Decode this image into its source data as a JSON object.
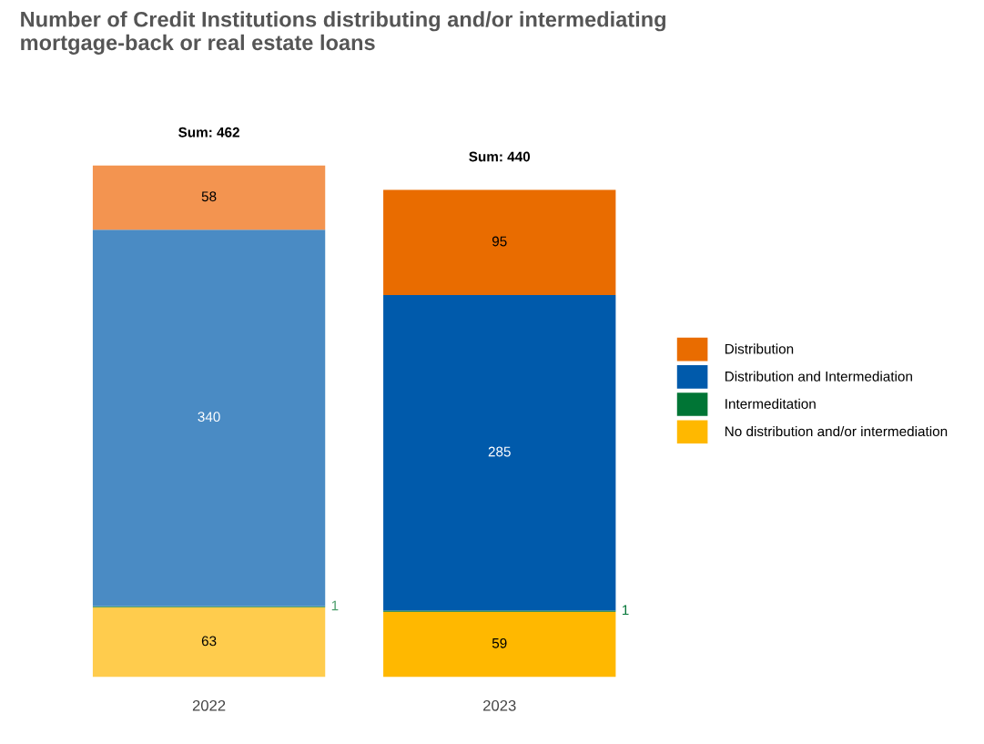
{
  "chart_data": {
    "type": "bar",
    "title": "Number of Credit Institutions distributing and/or intermediating\nmortgage-back or real estate loans",
    "categories": [
      "2022",
      "2023"
    ],
    "stacked": true,
    "series": [
      {
        "name": "No distribution and/or intermediation",
        "color": "#ffb800",
        "colors": [
          "#ffcc4d",
          "#ffb800"
        ],
        "values": [
          63,
          59
        ]
      },
      {
        "name": "Intermeditation",
        "color": "#007535",
        "colors": [
          "#4b9e6b",
          "#007535"
        ],
        "values": [
          1,
          1
        ]
      },
      {
        "name": "Distribution and Intermediation",
        "color": "#005aab",
        "colors": [
          "#4a8bc4",
          "#005aab"
        ],
        "values": [
          340,
          285
        ]
      },
      {
        "name": "Distribution",
        "color": "#e96c00",
        "colors": [
          "#f39450",
          "#e96c00"
        ],
        "values": [
          58,
          95
        ]
      }
    ],
    "data_labels": true,
    "totals": [
      "Sum: 462",
      "Sum: 440"
    ],
    "legend": "right",
    "grid": false
  }
}
